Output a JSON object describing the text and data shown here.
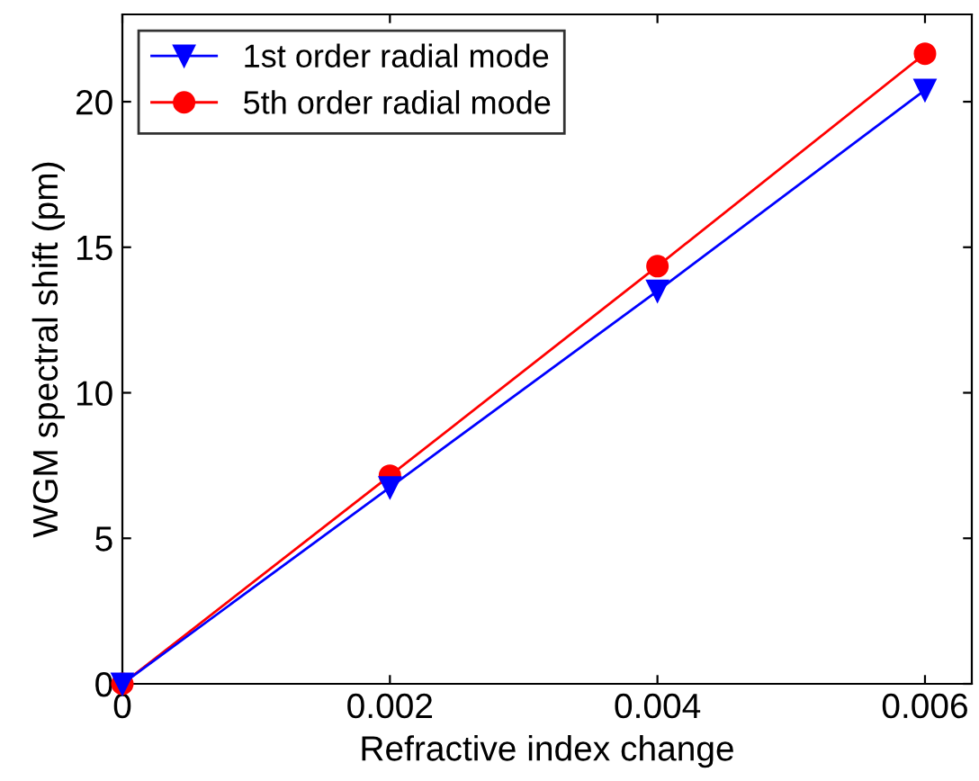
{
  "chart_data": {
    "type": "line",
    "xlabel": "Refractive index change",
    "ylabel": "WGM spectral shift (pm)",
    "x": [
      0,
      0.002,
      0.004,
      0.006
    ],
    "series": [
      {
        "name": "1st order radial mode",
        "color": "#0000ff",
        "marker": "triangle",
        "values": [
          0,
          6.75,
          13.5,
          20.4
        ]
      },
      {
        "name": "5th order radial mode",
        "color": "#ff0000",
        "marker": "circle",
        "values": [
          0,
          7.15,
          14.35,
          21.65
        ]
      }
    ],
    "xlim": [
      0,
      0.00635
    ],
    "xticks": [
      0,
      0.002,
      0.004,
      0.006
    ],
    "ylim": [
      0,
      23
    ],
    "yticks": [
      0,
      5,
      10,
      15,
      20
    ],
    "grid": false,
    "legend": "top left",
    "line_style": "solid"
  }
}
